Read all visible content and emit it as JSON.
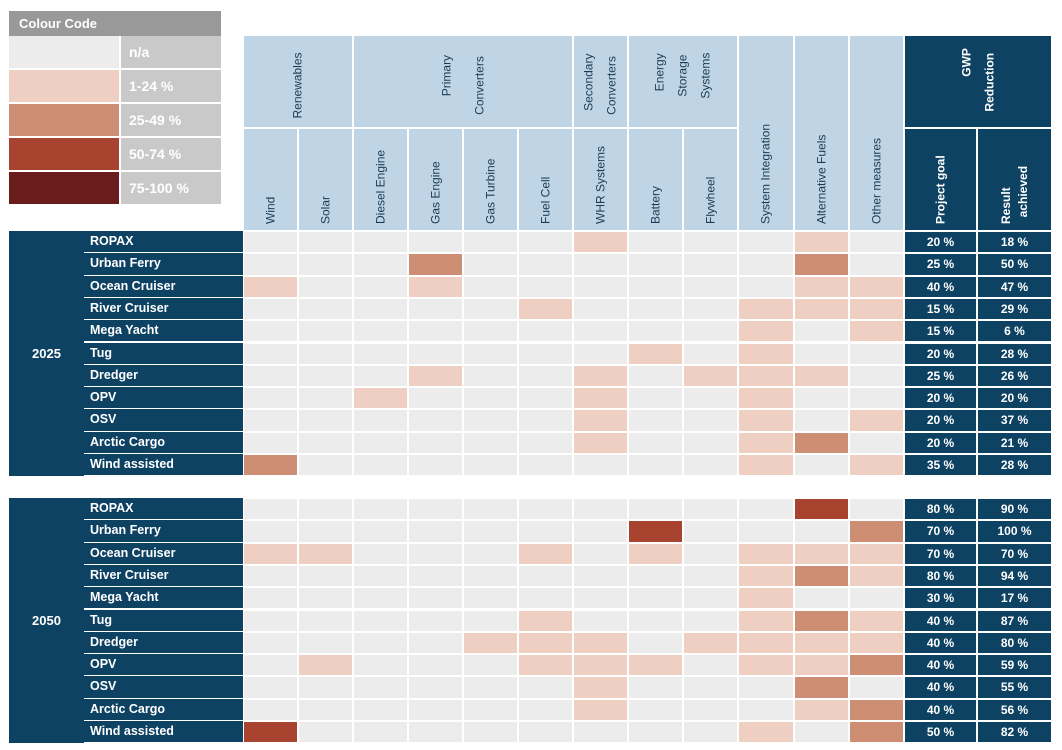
{
  "legend": {
    "title": "Colour Code",
    "items": [
      {
        "label": "n/a",
        "color": "#ececec"
      },
      {
        "label": "1-24 %",
        "color": "#f0cfc3"
      },
      {
        "label": "25-49 %",
        "color": "#cd8e74"
      },
      {
        "label": "50-74 %",
        "color": "#a8432f"
      },
      {
        "label": "75-100 %",
        "color": "#6b1c1c"
      }
    ]
  },
  "colors": {
    "navy": "#0e4263",
    "header_blue": "#bfd5e6",
    "na": "#ececec",
    "level_1": "#f0cfc3",
    "level_2": "#cd8e74",
    "level_3": "#a8432f",
    "level_4": "#6b1c1c"
  },
  "chart_data": {
    "type": "heatmap",
    "column_groups": [
      {
        "label": "Renewables",
        "columns": [
          "Wind",
          "Solar"
        ]
      },
      {
        "label": "Primary Converters",
        "columns": [
          "Diesel Engine",
          "Gas Engine",
          "Gas Turbine",
          "Fuel Cell"
        ]
      },
      {
        "label": "Secondary Converters",
        "columns": [
          "WHR Systems"
        ]
      },
      {
        "label": "Energy Storage Systems",
        "columns": [
          "Battery",
          "Flywheel"
        ]
      },
      {
        "label": "System Integration",
        "columns": []
      },
      {
        "label": "Alternative Fuels",
        "columns": []
      },
      {
        "label": "Other measures",
        "columns": []
      },
      {
        "label": "GWP Reduction",
        "columns": [
          "Project goal",
          "Result achieved"
        ]
      }
    ],
    "heat_columns": [
      "Wind",
      "Solar",
      "Diesel Engine",
      "Gas Engine",
      "Gas Turbine",
      "Fuel Cell",
      "WHR Systems",
      "Battery",
      "Flywheel",
      "System Integration",
      "Alternative Fuels",
      "Other measures"
    ],
    "level_scale": [
      "n/a",
      "1-24 %",
      "25-49 %",
      "50-74 %",
      "75-100 %"
    ],
    "groups": [
      {
        "label": "2025",
        "rows": [
          {
            "name": "ROPAX",
            "levels": [
              0,
              0,
              0,
              0,
              0,
              0,
              1,
              0,
              0,
              0,
              1,
              0
            ],
            "goal": "20 %",
            "result": "18 %"
          },
          {
            "name": "Urban Ferry",
            "levels": [
              0,
              0,
              0,
              2,
              0,
              0,
              0,
              0,
              0,
              0,
              2,
              0
            ],
            "goal": "25 %",
            "result": "50 %"
          },
          {
            "name": "Ocean Cruiser",
            "levels": [
              1,
              0,
              0,
              1,
              0,
              0,
              0,
              0,
              0,
              0,
              1,
              1
            ],
            "goal": "40 %",
            "result": "47 %"
          },
          {
            "name": "River Cruiser",
            "levels": [
              0,
              0,
              0,
              0,
              0,
              1,
              0,
              0,
              0,
              1,
              1,
              1
            ],
            "goal": "15 %",
            "result": "29 %"
          },
          {
            "name": "Mega Yacht",
            "levels": [
              0,
              0,
              0,
              0,
              0,
              0,
              0,
              0,
              0,
              1,
              0,
              1
            ],
            "goal": "15 %",
            "result": "6 %"
          },
          {
            "name": "Tug",
            "levels": [
              0,
              0,
              0,
              0,
              0,
              0,
              0,
              1,
              0,
              1,
              0,
              0
            ],
            "goal": "20 %",
            "result": "28 %"
          },
          {
            "name": "Dredger",
            "levels": [
              0,
              0,
              0,
              1,
              0,
              0,
              1,
              0,
              1,
              1,
              1,
              0
            ],
            "goal": "25 %",
            "result": "26 %"
          },
          {
            "name": "OPV",
            "levels": [
              0,
              0,
              1,
              0,
              0,
              0,
              1,
              0,
              0,
              1,
              0,
              0
            ],
            "goal": "20 %",
            "result": "20 %"
          },
          {
            "name": "OSV",
            "levels": [
              0,
              0,
              0,
              0,
              0,
              0,
              1,
              0,
              0,
              1,
              0,
              1
            ],
            "goal": "20 %",
            "result": "37 %"
          },
          {
            "name": "Arctic Cargo",
            "levels": [
              0,
              0,
              0,
              0,
              0,
              0,
              1,
              0,
              0,
              1,
              2,
              0
            ],
            "goal": "20 %",
            "result": "21 %"
          },
          {
            "name": "Wind assisted",
            "levels": [
              2,
              0,
              0,
              0,
              0,
              0,
              0,
              0,
              0,
              1,
              0,
              1
            ],
            "goal": "35 %",
            "result": "28 %"
          }
        ]
      },
      {
        "label": "2050",
        "rows": [
          {
            "name": "ROPAX",
            "levels": [
              0,
              0,
              0,
              0,
              0,
              0,
              0,
              0,
              0,
              0,
              3,
              0
            ],
            "goal": "80 %",
            "result": "90 %"
          },
          {
            "name": "Urban Ferry",
            "levels": [
              0,
              0,
              0,
              0,
              0,
              0,
              0,
              3,
              0,
              0,
              0,
              2
            ],
            "goal": "70 %",
            "result": "100 %"
          },
          {
            "name": "Ocean Cruiser",
            "levels": [
              1,
              1,
              0,
              0,
              0,
              1,
              0,
              1,
              0,
              1,
              1,
              1
            ],
            "goal": "70 %",
            "result": "70 %"
          },
          {
            "name": "River Cruiser",
            "levels": [
              0,
              0,
              0,
              0,
              0,
              0,
              0,
              0,
              0,
              1,
              2,
              1
            ],
            "goal": "80 %",
            "result": "94 %"
          },
          {
            "name": "Mega Yacht",
            "levels": [
              0,
              0,
              0,
              0,
              0,
              0,
              0,
              0,
              0,
              1,
              0,
              0
            ],
            "goal": "30 %",
            "result": "17 %"
          },
          {
            "name": "Tug",
            "levels": [
              0,
              0,
              0,
              0,
              0,
              1,
              0,
              0,
              0,
              1,
              2,
              1
            ],
            "goal": "40 %",
            "result": "87 %"
          },
          {
            "name": "Dredger",
            "levels": [
              0,
              0,
              0,
              0,
              1,
              1,
              1,
              0,
              1,
              1,
              1,
              1
            ],
            "goal": "40 %",
            "result": "80 %"
          },
          {
            "name": "OPV",
            "levels": [
              0,
              1,
              0,
              0,
              0,
              1,
              1,
              1,
              0,
              1,
              1,
              2
            ],
            "goal": "40 %",
            "result": "59 %"
          },
          {
            "name": "OSV",
            "levels": [
              0,
              0,
              0,
              0,
              0,
              0,
              1,
              0,
              0,
              0,
              2,
              0
            ],
            "goal": "40 %",
            "result": "55 %"
          },
          {
            "name": "Arctic Cargo",
            "levels": [
              0,
              0,
              0,
              0,
              0,
              0,
              1,
              0,
              0,
              0,
              1,
              2
            ],
            "goal": "40 %",
            "result": "56 %"
          },
          {
            "name": "Wind assisted",
            "levels": [
              3,
              0,
              0,
              0,
              0,
              0,
              0,
              0,
              0,
              1,
              0,
              2
            ],
            "goal": "50 %",
            "result": "82 %"
          }
        ]
      }
    ]
  }
}
